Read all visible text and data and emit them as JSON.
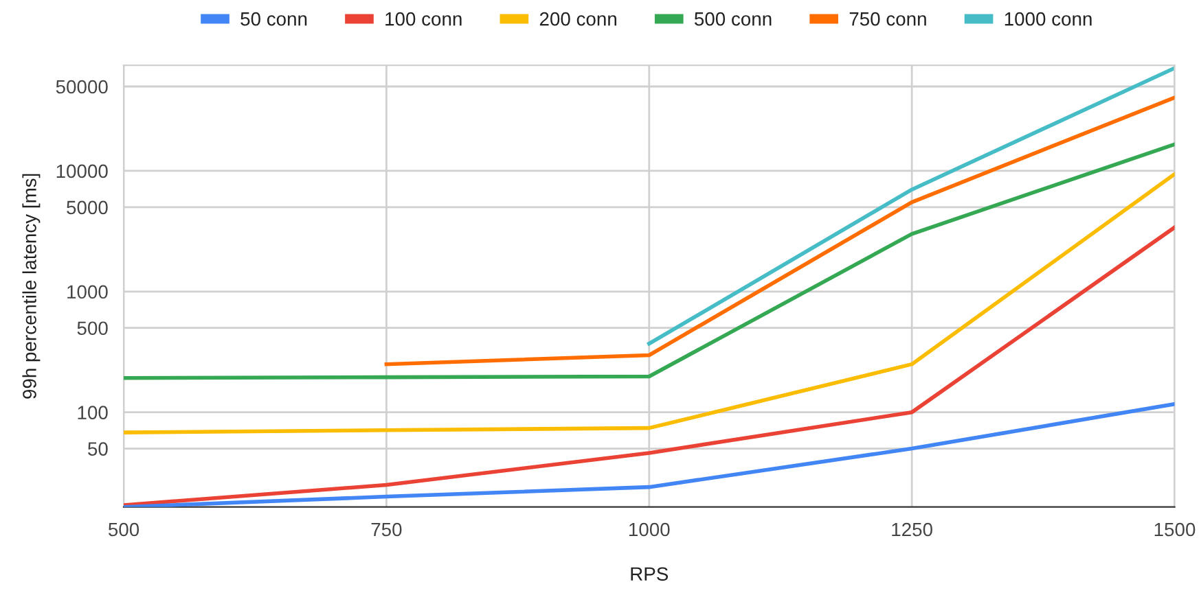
{
  "chart_data": {
    "type": "line",
    "xlabel": "RPS",
    "ylabel": "99h percentile latency [ms]",
    "log": "y",
    "grid": true,
    "legend": "top",
    "marker": "none",
    "line_style": "solid",
    "x": [
      500,
      750,
      1000,
      1250,
      1500
    ],
    "xlim": [
      500,
      1500
    ],
    "xticks": [
      500,
      750,
      1000,
      1250,
      1500
    ],
    "ylim": [
      16.4,
      75000
    ],
    "yticks": [
      50,
      100,
      500,
      1000,
      5000,
      10000,
      50000
    ],
    "series": [
      {
        "name": "50 conn",
        "color": "#4285f4",
        "values": [
          16.4,
          20,
          24,
          50,
          117
        ]
      },
      {
        "name": "100 conn",
        "color": "#ea4335",
        "values": [
          17,
          25,
          46,
          100,
          3400
        ]
      },
      {
        "name": "200 conn",
        "color": "#fbbc04",
        "values": [
          68,
          71,
          74,
          250,
          9400
        ]
      },
      {
        "name": "500 conn",
        "color": "#34a853",
        "values": [
          192,
          195,
          198,
          3000,
          16600
        ]
      },
      {
        "name": "750 conn",
        "color": "#ff6d01",
        "values": [
          null,
          250,
          297,
          5500,
          40500
        ]
      },
      {
        "name": "1000 conn",
        "color": "#46bdc6",
        "values": [
          null,
          null,
          370,
          7000,
          71000
        ]
      }
    ]
  }
}
